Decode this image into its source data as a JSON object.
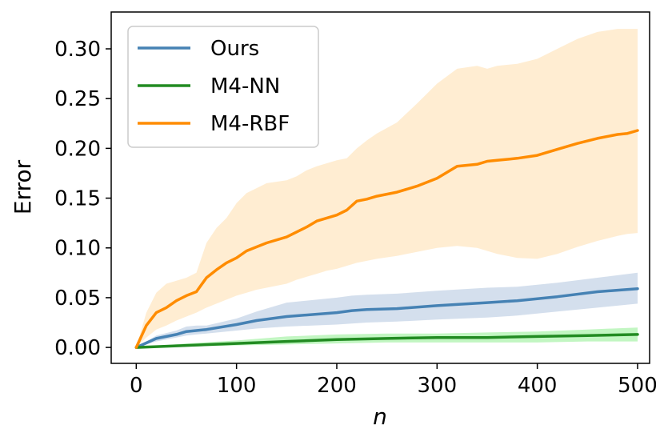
{
  "chart_data": {
    "type": "line",
    "xlabel": "n",
    "ylabel": "Error",
    "xlim": [
      -25,
      512
    ],
    "ylim": [
      -0.016,
      0.337
    ],
    "xticks": [
      0,
      100,
      200,
      300,
      400,
      500
    ],
    "yticks": [
      0.0,
      0.05,
      0.1,
      0.15,
      0.2,
      0.25,
      0.3
    ],
    "ytick_labels": [
      "0.00",
      "0.05",
      "0.10",
      "0.15",
      "0.20",
      "0.25",
      "0.30"
    ],
    "xtick_labels": [
      "0",
      "100",
      "200",
      "300",
      "400",
      "500"
    ],
    "grid": false,
    "legend_position": "top-left",
    "series": [
      {
        "name": "Ours",
        "color": "#4682b4",
        "band_color": "#b0c4de",
        "x": [
          0,
          20,
          40,
          50,
          60,
          70,
          100,
          120,
          150,
          200,
          215,
          230,
          260,
          300,
          350,
          380,
          420,
          460,
          500
        ],
        "y": [
          0.0,
          0.009,
          0.013,
          0.016,
          0.017,
          0.018,
          0.023,
          0.027,
          0.031,
          0.035,
          0.037,
          0.038,
          0.039,
          0.042,
          0.045,
          0.047,
          0.051,
          0.056,
          0.059
        ],
        "lower": [
          0.0,
          0.006,
          0.01,
          0.012,
          0.013,
          0.014,
          0.017,
          0.019,
          0.021,
          0.023,
          0.024,
          0.025,
          0.026,
          0.028,
          0.03,
          0.032,
          0.036,
          0.04,
          0.044
        ],
        "upper": [
          0.0,
          0.012,
          0.017,
          0.021,
          0.022,
          0.022,
          0.029,
          0.036,
          0.045,
          0.05,
          0.052,
          0.053,
          0.054,
          0.057,
          0.06,
          0.061,
          0.065,
          0.07,
          0.075
        ]
      },
      {
        "name": "M4-NN",
        "color": "#228b22",
        "band_color": "#90ee90",
        "x": [
          0,
          50,
          100,
          150,
          200,
          250,
          300,
          350,
          400,
          450,
          500
        ],
        "y": [
          0.0,
          0.002,
          0.004,
          0.006,
          0.008,
          0.009,
          0.01,
          0.01,
          0.011,
          0.012,
          0.013
        ],
        "lower": [
          0.0,
          0.001,
          0.002,
          0.003,
          0.004,
          0.005,
          0.005,
          0.005,
          0.005,
          0.006,
          0.006
        ],
        "upper": [
          0.0,
          0.004,
          0.007,
          0.011,
          0.013,
          0.014,
          0.014,
          0.015,
          0.016,
          0.018,
          0.02
        ]
      },
      {
        "name": "M4-RBF",
        "color": "#ff8c00",
        "band_color": "#ffdead",
        "x": [
          0,
          10,
          20,
          30,
          40,
          50,
          60,
          70,
          80,
          90,
          100,
          110,
          120,
          130,
          150,
          160,
          170,
          180,
          190,
          200,
          210,
          220,
          230,
          240,
          260,
          280,
          300,
          320,
          340,
          350,
          360,
          380,
          400,
          420,
          440,
          460,
          480,
          490,
          500
        ],
        "y": [
          0.0,
          0.022,
          0.035,
          0.04,
          0.047,
          0.052,
          0.056,
          0.07,
          0.078,
          0.085,
          0.09,
          0.097,
          0.101,
          0.105,
          0.111,
          0.116,
          0.121,
          0.127,
          0.13,
          0.133,
          0.138,
          0.147,
          0.149,
          0.152,
          0.156,
          0.162,
          0.17,
          0.182,
          0.184,
          0.187,
          0.188,
          0.19,
          0.193,
          0.199,
          0.205,
          0.21,
          0.214,
          0.215,
          0.218
        ],
        "lower": [
          0.0,
          0.01,
          0.018,
          0.022,
          0.027,
          0.031,
          0.035,
          0.04,
          0.044,
          0.048,
          0.052,
          0.055,
          0.058,
          0.06,
          0.064,
          0.068,
          0.071,
          0.074,
          0.077,
          0.079,
          0.082,
          0.085,
          0.087,
          0.089,
          0.092,
          0.096,
          0.1,
          0.102,
          0.1,
          0.097,
          0.094,
          0.09,
          0.089,
          0.094,
          0.101,
          0.107,
          0.112,
          0.114,
          0.115
        ],
        "upper": [
          0.0,
          0.035,
          0.055,
          0.064,
          0.067,
          0.07,
          0.075,
          0.105,
          0.12,
          0.13,
          0.145,
          0.155,
          0.16,
          0.165,
          0.168,
          0.172,
          0.178,
          0.182,
          0.185,
          0.188,
          0.19,
          0.2,
          0.208,
          0.215,
          0.226,
          0.245,
          0.265,
          0.28,
          0.283,
          0.28,
          0.283,
          0.285,
          0.29,
          0.3,
          0.31,
          0.317,
          0.32,
          0.32,
          0.32
        ]
      }
    ]
  }
}
